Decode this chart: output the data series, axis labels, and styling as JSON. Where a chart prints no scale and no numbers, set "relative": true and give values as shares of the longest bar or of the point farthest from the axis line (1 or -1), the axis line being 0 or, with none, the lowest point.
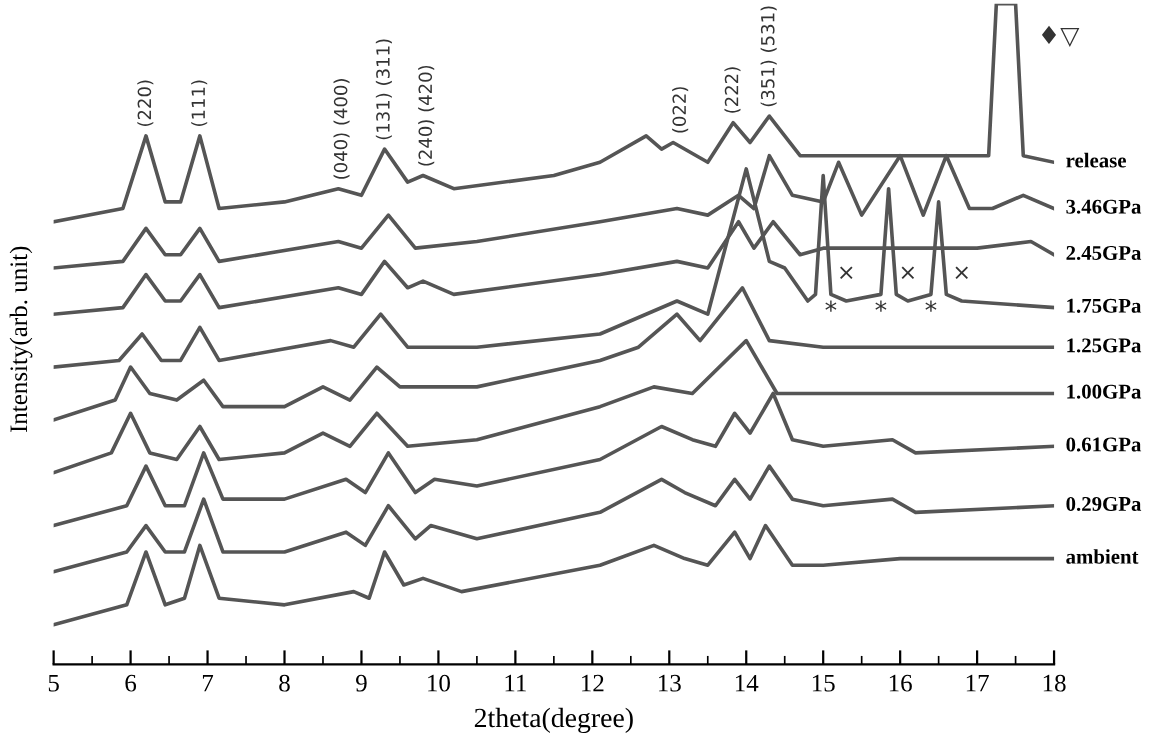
{
  "chart_data": {
    "type": "line",
    "relative": true,
    "xlabel": "2theta(degree)",
    "ylabel": "Intensity(arb. unit)",
    "xlim": [
      5,
      18
    ],
    "xticks": [
      5,
      6,
      7,
      8,
      9,
      10,
      11,
      12,
      13,
      14,
      15,
      16,
      17,
      18
    ],
    "series": [
      {
        "name": "release",
        "color": "#555555",
        "x": [
          5,
          5.9,
          6.2,
          6.45,
          6.65,
          6.9,
          7.15,
          8.0,
          8.7,
          9.0,
          9.3,
          9.6,
          9.8,
          10.2,
          11.5,
          12.1,
          12.7,
          12.9,
          13.05,
          13.5,
          13.83,
          14.05,
          14.3,
          14.7,
          15.5,
          16.5,
          17.15,
          17.25,
          17.5,
          17.6,
          18
        ],
        "values": [
          0.67,
          0.69,
          0.8,
          0.7,
          0.7,
          0.8,
          0.69,
          0.7,
          0.72,
          0.71,
          0.78,
          0.73,
          0.74,
          0.72,
          0.74,
          0.76,
          0.8,
          0.78,
          0.79,
          0.76,
          0.82,
          0.79,
          0.83,
          0.77,
          0.77,
          0.77,
          0.77,
          1.0,
          1.0,
          0.77,
          0.76
        ]
      },
      {
        "name": "3.46GPa",
        "color": "#555555",
        "x": [
          5,
          5.9,
          6.2,
          6.45,
          6.65,
          6.9,
          7.15,
          8.7,
          9.0,
          9.35,
          9.7,
          10.5,
          12.1,
          13.1,
          13.5,
          13.9,
          14.1,
          14.3,
          14.6,
          15.0,
          15.2,
          15.5,
          16.0,
          16.3,
          16.6,
          16.9,
          17.2,
          17.6,
          18
        ],
        "values": [
          0.6,
          0.61,
          0.66,
          0.62,
          0.62,
          0.66,
          0.61,
          0.64,
          0.63,
          0.68,
          0.63,
          0.64,
          0.67,
          0.69,
          0.68,
          0.71,
          0.69,
          0.77,
          0.71,
          0.7,
          0.76,
          0.68,
          0.77,
          0.68,
          0.77,
          0.69,
          0.69,
          0.71,
          0.69
        ]
      },
      {
        "name": "2.45GPa",
        "color": "#555555",
        "x": [
          5,
          5.9,
          6.2,
          6.45,
          6.65,
          6.9,
          7.15,
          8.7,
          9.0,
          9.3,
          9.6,
          9.8,
          10.2,
          12.1,
          13.1,
          13.5,
          13.9,
          14.1,
          14.35,
          14.7,
          15,
          17,
          17.7,
          18
        ],
        "values": [
          0.53,
          0.54,
          0.59,
          0.55,
          0.55,
          0.59,
          0.54,
          0.57,
          0.56,
          0.61,
          0.57,
          0.58,
          0.56,
          0.59,
          0.61,
          0.6,
          0.67,
          0.63,
          0.67,
          0.62,
          0.63,
          0.63,
          0.64,
          0.62
        ]
      },
      {
        "name": "1.75GPa",
        "color": "#555555",
        "x": [
          5,
          5.85,
          6.15,
          6.4,
          6.65,
          6.9,
          7.15,
          8.6,
          8.9,
          9.25,
          9.6,
          10.5,
          12.1,
          13.1,
          13.5,
          14.0,
          14.3,
          14.5,
          14.8,
          14.9,
          15.0,
          15.1,
          15.3,
          15.75,
          15.85,
          15.95,
          16.1,
          16.4,
          16.5,
          16.6,
          16.8,
          18
        ],
        "values": [
          0.45,
          0.46,
          0.5,
          0.46,
          0.46,
          0.51,
          0.46,
          0.49,
          0.48,
          0.53,
          0.48,
          0.48,
          0.5,
          0.55,
          0.53,
          0.75,
          0.61,
          0.6,
          0.55,
          0.56,
          0.74,
          0.56,
          0.55,
          0.56,
          0.72,
          0.56,
          0.55,
          0.56,
          0.7,
          0.56,
          0.55,
          0.54
        ]
      },
      {
        "name": "1.25GPa",
        "color": "#555555",
        "x": [
          5,
          5.8,
          6.0,
          6.25,
          6.6,
          6.95,
          7.2,
          8.0,
          8.5,
          8.85,
          9.2,
          9.5,
          10.5,
          12.1,
          12.6,
          13.1,
          13.4,
          13.95,
          14.3,
          15,
          18
        ],
        "values": [
          0.37,
          0.4,
          0.45,
          0.41,
          0.4,
          0.43,
          0.39,
          0.39,
          0.42,
          0.4,
          0.45,
          0.42,
          0.42,
          0.46,
          0.48,
          0.53,
          0.49,
          0.57,
          0.49,
          0.48,
          0.48
        ]
      },
      {
        "name": "1.00GPa",
        "color": "#555555",
        "x": [
          5,
          5.75,
          6.0,
          6.25,
          6.6,
          6.9,
          7.15,
          8.0,
          8.5,
          8.85,
          9.2,
          9.6,
          10.5,
          12.1,
          12.8,
          13.3,
          14.0,
          14.4,
          15,
          18
        ],
        "values": [
          0.29,
          0.32,
          0.38,
          0.32,
          0.31,
          0.36,
          0.31,
          0.32,
          0.35,
          0.33,
          0.38,
          0.33,
          0.34,
          0.39,
          0.42,
          0.41,
          0.49,
          0.41,
          0.41,
          0.41
        ]
      },
      {
        "name": "0.61GPa",
        "color": "#555555",
        "x": [
          5,
          5.95,
          6.2,
          6.45,
          6.7,
          6.95,
          7.2,
          8.0,
          8.8,
          9.05,
          9.35,
          9.7,
          9.95,
          10.5,
          12.1,
          12.9,
          13.3,
          13.6,
          13.85,
          14.05,
          14.35,
          14.6,
          15,
          15.9,
          16.2,
          18
        ],
        "values": [
          0.21,
          0.24,
          0.3,
          0.24,
          0.24,
          0.32,
          0.25,
          0.25,
          0.28,
          0.26,
          0.32,
          0.26,
          0.28,
          0.27,
          0.31,
          0.36,
          0.34,
          0.33,
          0.38,
          0.35,
          0.41,
          0.34,
          0.33,
          0.34,
          0.32,
          0.33
        ]
      },
      {
        "name": "0.29GPa",
        "color": "#555555",
        "x": [
          5,
          5.95,
          6.2,
          6.45,
          6.7,
          6.95,
          7.2,
          8.0,
          8.8,
          9.05,
          9.35,
          9.7,
          9.9,
          10.5,
          12.1,
          12.9,
          13.2,
          13.6,
          13.85,
          14.05,
          14.3,
          14.6,
          15,
          15.9,
          16.2,
          18
        ],
        "values": [
          0.14,
          0.17,
          0.21,
          0.17,
          0.17,
          0.25,
          0.17,
          0.17,
          0.2,
          0.18,
          0.24,
          0.19,
          0.21,
          0.19,
          0.23,
          0.28,
          0.26,
          0.24,
          0.28,
          0.25,
          0.3,
          0.25,
          0.24,
          0.25,
          0.23,
          0.24
        ]
      },
      {
        "name": "ambient",
        "color": "#555555",
        "x": [
          5,
          5.95,
          6.2,
          6.45,
          6.7,
          6.9,
          7.15,
          8.0,
          8.9,
          9.1,
          9.3,
          9.55,
          9.8,
          10.3,
          12.1,
          12.8,
          13.2,
          13.5,
          13.85,
          14.05,
          14.25,
          14.6,
          15,
          16,
          17,
          18
        ],
        "values": [
          0.06,
          0.09,
          0.17,
          0.09,
          0.1,
          0.18,
          0.1,
          0.09,
          0.11,
          0.1,
          0.17,
          0.12,
          0.13,
          0.11,
          0.15,
          0.18,
          0.16,
          0.15,
          0.2,
          0.16,
          0.21,
          0.15,
          0.15,
          0.16,
          0.16,
          0.16
        ]
      }
    ],
    "annotations": [
      {
        "text": "(220)",
        "x": 6.2,
        "y": 0.8
      },
      {
        "text": "(111)",
        "x": 6.9,
        "y": 0.8
      },
      {
        "text": "(040) (400)",
        "x": 8.75,
        "y": 0.72
      },
      {
        "text": "(131) (311)",
        "x": 9.3,
        "y": 0.78
      },
      {
        "text": "(240) (420)",
        "x": 9.85,
        "y": 0.74
      },
      {
        "text": "(022)",
        "x": 13.15,
        "y": 0.79
      },
      {
        "text": "(222)",
        "x": 13.83,
        "y": 0.82
      },
      {
        "text": "(351) (531)",
        "x": 14.3,
        "y": 0.83
      },
      {
        "text": "*",
        "x": 15.1,
        "y": 0.56
      },
      {
        "text": "*",
        "x": 15.75,
        "y": 0.56
      },
      {
        "text": "*",
        "x": 16.4,
        "y": 0.56
      },
      {
        "text": "×",
        "x": 15.3,
        "y": 0.55
      },
      {
        "text": "×",
        "x": 16.1,
        "y": 0.55
      },
      {
        "text": "×",
        "x": 16.8,
        "y": 0.55
      },
      {
        "text": "♦▽",
        "x": 17.5,
        "y": 1.0
      }
    ]
  }
}
